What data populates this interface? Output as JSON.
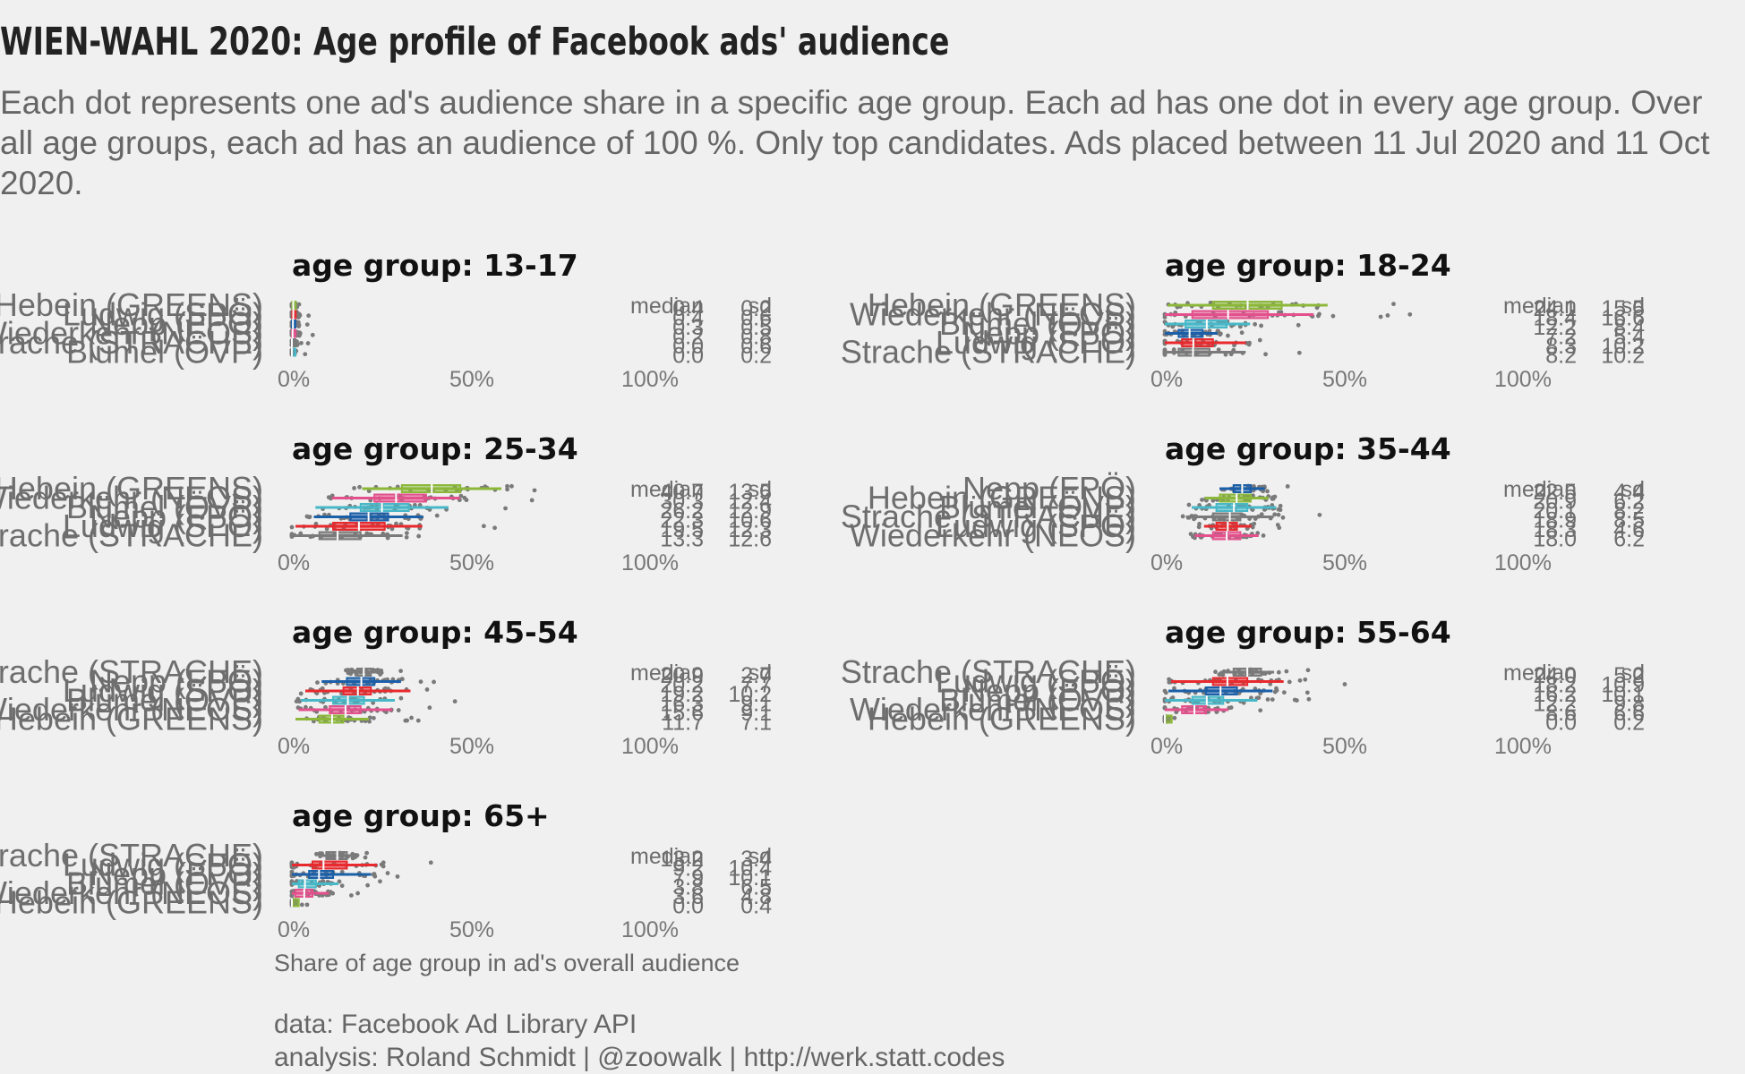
{
  "title": "WIEN-WAHL 2020: Age profile of Facebook ads' audience",
  "subtitle": "Each dot represents one ad's audience share in a specific age group. Each ad has one dot in every age group. Over all age groups, each ad has an audience of 100 %. Only top candidates. Ads placed between 11 Jul 2020 and 11 Oct 2020.",
  "x_axis_label": "Share of age group in ad's overall audience",
  "caption_lines": [
    "data: Facebook Ad Library API",
    "analysis: Roland Schmidt | @zoowalk | http://werk.statt.codes"
  ],
  "colors": {
    "Hebein (GREENS)": "#8cb83a",
    "Nepp (FPÖ)": "#1b5fa8",
    "Ludwig (SPÖ)": "#e8292e",
    "Wiederkehr (NEOS)": "#e3508c",
    "Blümel (ÖVP)": "#47b8c8",
    "Strache (STRACHE)": "#7a7a7a",
    "other": "#7a7a7a"
  },
  "chart_data": [
    {
      "type": "boxplot-strip",
      "title": "age group: 13-17",
      "xlim": [
        0,
        100
      ],
      "xticks": [
        "0%",
        "50%",
        "100%"
      ],
      "stat_headers": [
        "median",
        "sd"
      ],
      "rows": [
        {
          "candidate": "Hebein (GREENS)",
          "median": "0.4",
          "sd": "0.2",
          "box": [
            0.1,
            0.7
          ]
        },
        {
          "candidate": "Ludwig (SPÖ)",
          "median": "0.4",
          "sd": "0.6",
          "box": [
            0.1,
            1.0
          ]
        },
        {
          "candidate": "Nepp (FPÖ)",
          "median": "0.3",
          "sd": "0.5",
          "box": [
            0.0,
            0.8
          ]
        },
        {
          "candidate": "Wiederkehr (NEOS)",
          "median": "0.2",
          "sd": "0.8",
          "box": [
            0.0,
            1.0
          ]
        },
        {
          "candidate": "Strache (STRACHE)",
          "median": "0.0",
          "sd": "0.6",
          "box": [
            0.0,
            0.4
          ]
        },
        {
          "candidate": "Blümel (ÖVP)",
          "median": "0.0",
          "sd": "0.2",
          "box": [
            0.0,
            0.3
          ]
        }
      ]
    },
    {
      "type": "boxplot-strip",
      "title": "age group: 18-24",
      "xlim": [
        0,
        100
      ],
      "xticks": [
        "0%",
        "50%",
        "100%"
      ],
      "stat_headers": [
        "median",
        "sd"
      ],
      "rows": [
        {
          "candidate": "Hebein (GREENS)",
          "median": "24.1",
          "sd": "15.5",
          "box": [
            14,
            34
          ]
        },
        {
          "candidate": "Wiederkehr (NEOS)",
          "median": "18.4",
          "sd": "16.6",
          "box": [
            8,
            30
          ]
        },
        {
          "candidate": "Blümel (ÖVP)",
          "median": "12.2",
          "sd": "8.4",
          "box": [
            6,
            18
          ]
        },
        {
          "candidate": "Nepp (FPÖ)",
          "median": "7.2",
          "sd": "5.4",
          "box": [
            4,
            11
          ]
        },
        {
          "candidate": "Ludwig (SPÖ)",
          "median": "8.3",
          "sd": "10.2",
          "box": [
            5,
            14
          ]
        },
        {
          "candidate": "Strache (STRACHE)",
          "median": "8.2",
          "sd": "10.2",
          "box": [
            4,
            13
          ]
        }
      ]
    },
    {
      "type": "boxplot-strip",
      "title": "age group: 25-34",
      "xlim": [
        0,
        100
      ],
      "xticks": [
        "0%",
        "50%",
        "100%"
      ],
      "stat_headers": [
        "median",
        "sd"
      ],
      "rows": [
        {
          "candidate": "Hebein (GREENS)",
          "median": "40.7",
          "sd": "13.5",
          "box": [
            32,
            49
          ]
        },
        {
          "candidate": "Wiederkehr (NEOS)",
          "median": "30.3",
          "sd": "12.4",
          "box": [
            24,
            39
          ]
        },
        {
          "candidate": "Blümel (ÖVP)",
          "median": "26.2",
          "sd": "12.9",
          "box": [
            20,
            34
          ]
        },
        {
          "candidate": "Nepp (FPÖ)",
          "median": "22.3",
          "sd": "10.6",
          "box": [
            17,
            28
          ]
        },
        {
          "candidate": "Ludwig (SPÖ)",
          "median": "19.5",
          "sd": "12.3",
          "box": [
            12,
            27
          ]
        },
        {
          "candidate": "Strache (STRACHE)",
          "median": "13.3",
          "sd": "12.6",
          "box": [
            8,
            20
          ]
        }
      ]
    },
    {
      "type": "boxplot-strip",
      "title": "age group: 35-44",
      "xlim": [
        0,
        100
      ],
      "xticks": [
        "0%",
        "50%",
        "100%"
      ],
      "stat_headers": [
        "median",
        "sd"
      ],
      "rows": [
        {
          "candidate": "Nepp (FPÖ)",
          "median": "22.5",
          "sd": "4.4",
          "box": [
            20,
            25
          ]
        },
        {
          "candidate": "Hebein (GREENS)",
          "median": "20.9",
          "sd": "6.2",
          "box": [
            16,
            25
          ]
        },
        {
          "candidate": "Blümel (ÖVP)",
          "median": "20.1",
          "sd": "8.2",
          "box": [
            15,
            24
          ]
        },
        {
          "candidate": "Strache (STRACHE)",
          "median": "18.9",
          "sd": "8.5",
          "box": [
            14,
            22
          ]
        },
        {
          "candidate": "Ludwig (SPÖ)",
          "median": "18.3",
          "sd": "4.6",
          "box": [
            15,
            21
          ]
        },
        {
          "candidate": "Wiederkehr (NEOS)",
          "median": "18.0",
          "sd": "6.2",
          "box": [
            14,
            22
          ]
        }
      ]
    },
    {
      "type": "boxplot-strip",
      "title": "age group: 45-54",
      "xlim": [
        0,
        100
      ],
      "xticks": [
        "0%",
        "50%",
        "100%"
      ],
      "stat_headers": [
        "median",
        "sd"
      ],
      "rows": [
        {
          "candidate": "Strache (STRACHE)",
          "median": "20.9",
          "sd": "2.7",
          "box": [
            19,
            23
          ]
        },
        {
          "candidate": "Nepp (FPÖ)",
          "median": "20.2",
          "sd": "7.7",
          "box": [
            16,
            24
          ]
        },
        {
          "candidate": "Ludwig (SPÖ)",
          "median": "19.2",
          "sd": "10.2",
          "box": [
            15,
            23
          ]
        },
        {
          "candidate": "Blümel (ÖVP)",
          "median": "16.3",
          "sd": "9.1",
          "box": [
            12,
            21
          ]
        },
        {
          "candidate": "Wiederkehr (NEOS)",
          "median": "15.6",
          "sd": "9.1",
          "box": [
            11,
            20
          ]
        },
        {
          "candidate": "Hebein (GREENS)",
          "median": "11.7",
          "sd": "7.1",
          "box": [
            8,
            15
          ]
        }
      ]
    },
    {
      "type": "boxplot-strip",
      "title": "age group: 55-64",
      "xlim": [
        0,
        100
      ],
      "xticks": [
        "0%",
        "50%",
        "100%"
      ],
      "stat_headers": [
        "median",
        "sd"
      ],
      "rows": [
        {
          "candidate": "Strache (STRACHE)",
          "median": "24.0",
          "sd": "5.2",
          "box": [
            20,
            28
          ]
        },
        {
          "candidate": "Ludwig (SPÖ)",
          "median": "18.2",
          "sd": "10.9",
          "box": [
            14,
            24
          ]
        },
        {
          "candidate": "Nepp (FPÖ)",
          "median": "16.2",
          "sd": "10.1",
          "box": [
            12,
            21
          ]
        },
        {
          "candidate": "Blümel (ÖVP)",
          "median": "12.2",
          "sd": "9.8",
          "box": [
            8,
            17
          ]
        },
        {
          "candidate": "Wiederkehr (NEOS)",
          "median": "8.6",
          "sd": "6.6",
          "box": [
            5,
            12
          ]
        },
        {
          "candidate": "Hebein (GREENS)",
          "median": "0.0",
          "sd": "0.2",
          "box": [
            0,
            2
          ]
        }
      ]
    },
    {
      "type": "boxplot-strip",
      "title": "age group: 65+",
      "xlim": [
        0,
        100
      ],
      "xticks": [
        "0%",
        "50%",
        "100%"
      ],
      "stat_headers": [
        "median",
        "sd"
      ],
      "rows": [
        {
          "candidate": "Strache (STRACHE)",
          "median": "13.2",
          "sd": "3.4",
          "box": [
            10,
            16
          ]
        },
        {
          "candidate": "Ludwig (SPÖ)",
          "median": "9.2",
          "sd": "10.4",
          "box": [
            6,
            16
          ]
        },
        {
          "candidate": "Nepp (FPÖ)",
          "median": "7.9",
          "sd": "10.1",
          "box": [
            5,
            12
          ]
        },
        {
          "candidate": "Blümel (ÖVP)",
          "median": "3.8",
          "sd": "6.5",
          "box": [
            2,
            7
          ]
        },
        {
          "candidate": "Wiederkehr (NEOS)",
          "median": "3.6",
          "sd": "4.8",
          "box": [
            1,
            6
          ]
        },
        {
          "candidate": "Hebein (GREENS)",
          "median": "0.0",
          "sd": "0.4",
          "box": [
            0,
            2
          ]
        }
      ]
    }
  ]
}
